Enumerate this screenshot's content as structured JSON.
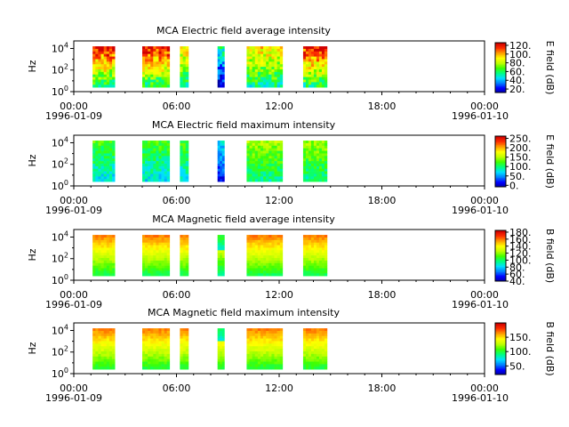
{
  "figure": {
    "start_date": "1996-01-09",
    "end_date": "1996-01-10"
  },
  "chart_data": [
    {
      "type": "heatmap",
      "title": "MCA  Electric field average intensity",
      "ylabel": "Hz",
      "yscale": "log",
      "ylim": [
        1,
        50000
      ],
      "ytick_labels": [
        "10^0",
        "10^2",
        "10^4"
      ],
      "x_tick_labels": [
        "00:00",
        "06:00",
        "12:00",
        "18:00",
        "00:00"
      ],
      "x_date_labels": [
        "1996-01-09",
        "1996-01-10"
      ],
      "colorbar": {
        "label": "E field (dB)",
        "range": [
          12,
          126
        ],
        "ticks": [
          "20.",
          "40.",
          "60.",
          "80.",
          "100.",
          "120."
        ]
      },
      "data_segments_hours": [
        [
          1.1,
          2.4
        ],
        [
          4.0,
          5.6
        ],
        [
          6.2,
          6.7
        ],
        [
          8.4,
          8.8
        ],
        [
          10.1,
          12.2
        ],
        [
          13.4,
          14.8
        ]
      ],
      "colormap": [
        "#00009f",
        "#0000ff",
        "#0080ff",
        "#00e0ff",
        "#00ff80",
        "#40ff00",
        "#c0ff00",
        "#ffff00",
        "#ffa000",
        "#ff3000",
        "#d00000"
      ]
    },
    {
      "type": "heatmap",
      "title": "MCA  Electric field maximum intensity",
      "ylabel": "Hz",
      "yscale": "log",
      "ylim": [
        1,
        50000
      ],
      "ytick_labels": [
        "10^0",
        "10^2",
        "10^4"
      ],
      "x_tick_labels": [
        "00:00",
        "06:00",
        "12:00",
        "18:00",
        "00:00"
      ],
      "x_date_labels": [
        "1996-01-09",
        "1996-01-10"
      ],
      "colorbar": {
        "label": "E field (dB)",
        "range": [
          -8,
          262
        ],
        "ticks": [
          "0.",
          "50.",
          "100.",
          "150.",
          "200.",
          "250."
        ]
      },
      "data_segments_hours": [
        [
          1.1,
          2.4
        ],
        [
          4.0,
          5.6
        ],
        [
          6.2,
          6.7
        ],
        [
          8.4,
          8.8
        ],
        [
          10.1,
          12.2
        ],
        [
          13.4,
          14.8
        ]
      ]
    },
    {
      "type": "heatmap",
      "title": "MCA  Magnetic field average intensity",
      "ylabel": "Hz",
      "yscale": "log",
      "ylim": [
        1,
        50000
      ],
      "ytick_labels": [
        "10^0",
        "10^2",
        "10^4"
      ],
      "x_tick_labels": [
        "00:00",
        "06:00",
        "12:00",
        "18:00",
        "00:00"
      ],
      "x_date_labels": [
        "1996-01-09",
        "1996-01-10"
      ],
      "colorbar": {
        "label": "B field (dB)",
        "range": [
          40,
          185
        ],
        "ticks": [
          "40.",
          "60.",
          "80.",
          "100.",
          "120.",
          "140.",
          "160.",
          "180."
        ]
      },
      "data_segments_hours": [
        [
          1.1,
          2.4
        ],
        [
          4.0,
          5.6
        ],
        [
          6.2,
          6.7
        ],
        [
          8.4,
          8.8
        ],
        [
          10.1,
          12.2
        ],
        [
          13.4,
          14.8
        ]
      ]
    },
    {
      "type": "heatmap",
      "title": "MCA  Magnetic field maximum intensity",
      "ylabel": "Hz",
      "yscale": "log",
      "ylim": [
        1,
        50000
      ],
      "ytick_labels": [
        "10^0",
        "10^2",
        "10^4"
      ],
      "x_tick_labels": [
        "00:00",
        "06:00",
        "12:00",
        "18:00",
        "00:00"
      ],
      "x_date_labels": [
        "1996-01-09",
        "1996-01-10"
      ],
      "colorbar": {
        "label": "B field (dB)",
        "range": [
          20,
          200
        ],
        "ticks": [
          "50.",
          "100.",
          "150."
        ]
      },
      "data_segments_hours": [
        [
          1.1,
          2.4
        ],
        [
          4.0,
          5.6
        ],
        [
          6.2,
          6.7
        ],
        [
          8.4,
          8.8
        ],
        [
          10.1,
          12.2
        ],
        [
          13.4,
          14.8
        ]
      ]
    }
  ]
}
